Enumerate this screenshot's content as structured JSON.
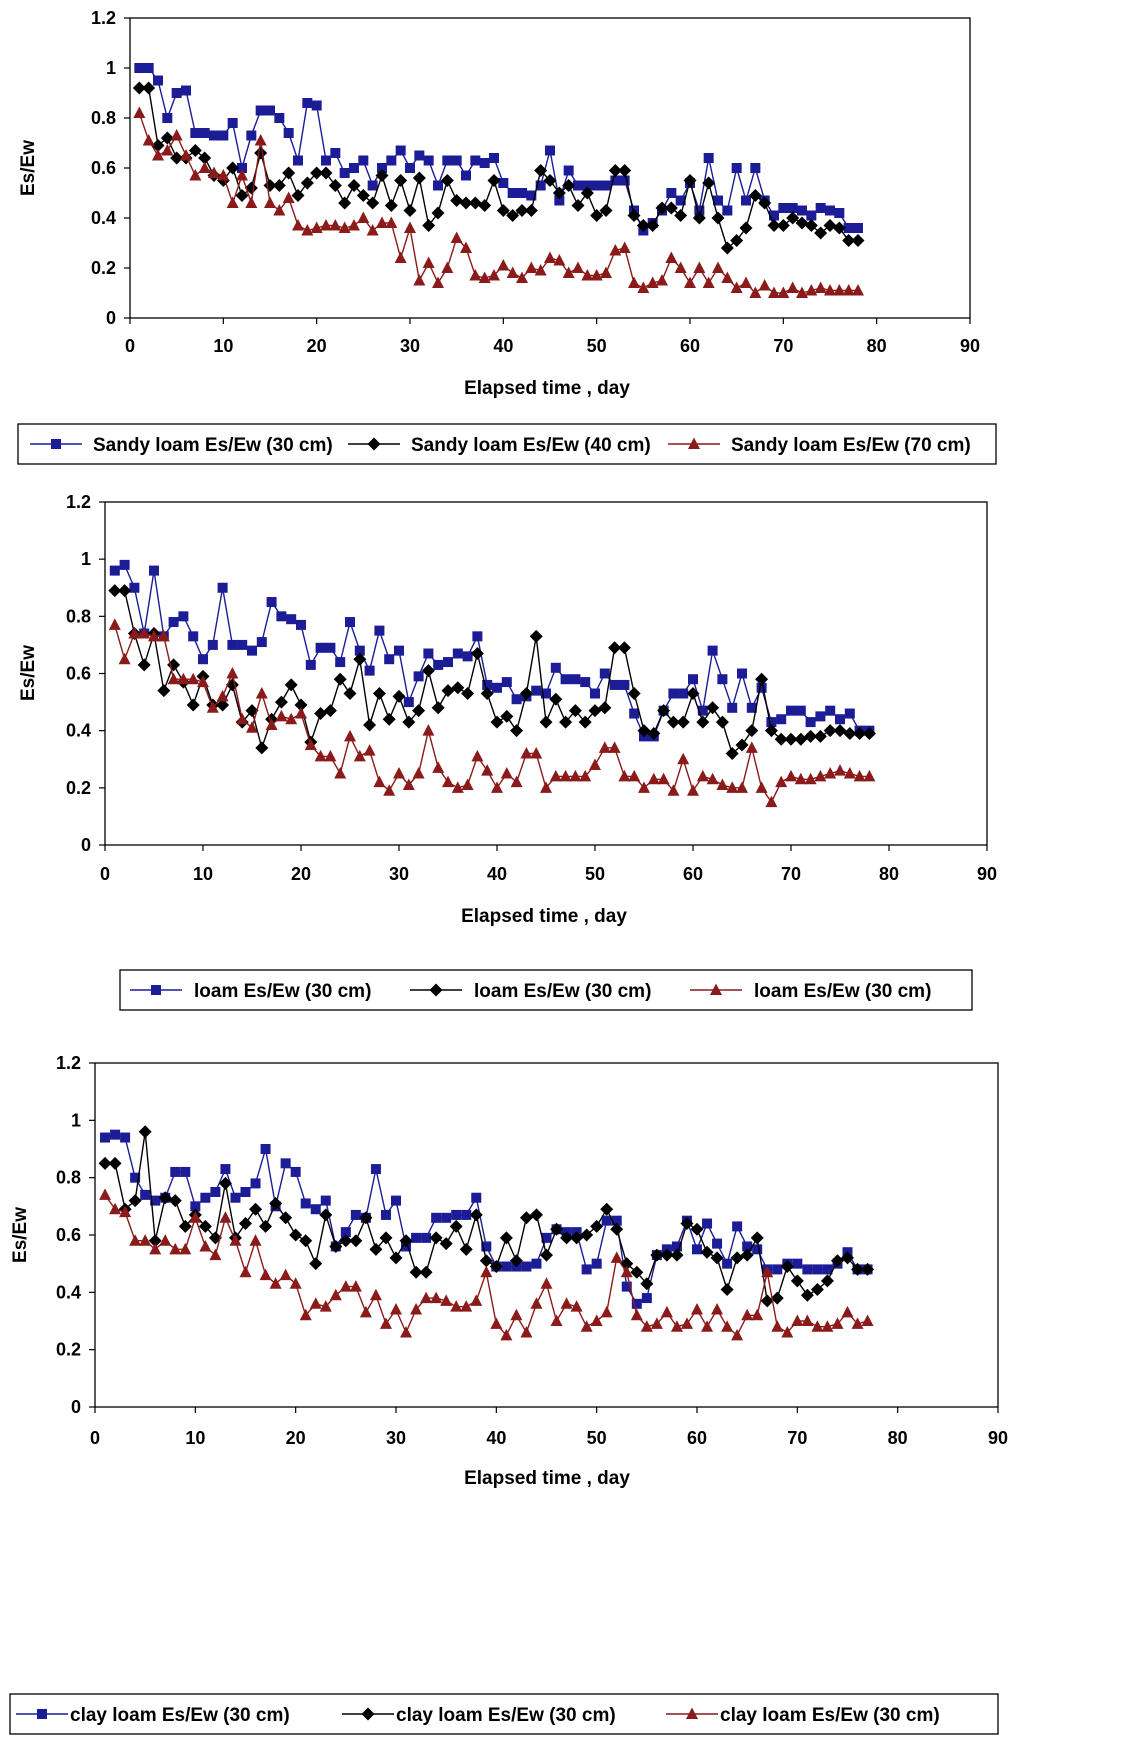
{
  "chart_data": [
    {
      "type": "line",
      "title": "",
      "xlabel": "Elapsed time , day",
      "ylabel": "Es/Ew",
      "xlim": [
        0,
        90
      ],
      "ylim": [
        0,
        1.2
      ],
      "x_ticks": [
        "0",
        "10",
        "20",
        "30",
        "40",
        "50",
        "60",
        "70",
        "80",
        "90"
      ],
      "y_ticks": [
        "0",
        "0.2",
        "0.4",
        "0.6",
        "0.8",
        "1",
        "1.2"
      ],
      "grid": false,
      "legend_position": "bottom",
      "series": [
        {
          "name": "Sandy loam Es/Ew (30 cm)",
          "color": "#1c1c96",
          "marker": "square",
          "values": [
            1.0,
            1.0,
            0.95,
            0.8,
            0.9,
            0.91,
            0.74,
            0.74,
            0.73,
            0.73,
            0.78,
            0.6,
            0.73,
            0.83,
            0.83,
            0.8,
            0.74,
            0.63,
            0.86,
            0.85,
            0.63,
            0.66,
            0.58,
            0.6,
            0.63,
            0.53,
            0.6,
            0.63,
            0.67,
            0.6,
            0.65,
            0.63,
            0.53,
            0.63,
            0.63,
            0.57,
            0.63,
            0.62,
            0.64,
            0.54,
            0.5,
            0.5,
            0.49,
            0.53,
            0.67,
            0.47,
            0.59,
            0.53,
            0.53,
            0.53,
            0.53,
            0.55,
            0.55,
            0.43,
            0.35,
            0.38,
            0.43,
            0.5,
            0.47,
            0.54,
            0.43,
            0.64,
            0.47,
            0.43,
            0.6,
            0.47,
            0.6,
            0.47,
            0.41,
            0.44,
            0.44,
            0.43,
            0.41,
            0.44,
            0.43,
            0.42,
            0.36,
            0.36
          ]
        },
        {
          "name": "Sandy loam Es/Ew (40 cm)",
          "color": "#000000",
          "marker": "diamond",
          "values": [
            0.92,
            0.92,
            0.69,
            0.72,
            0.64,
            0.64,
            0.67,
            0.64,
            0.57,
            0.55,
            0.6,
            0.49,
            0.52,
            0.66,
            0.53,
            0.53,
            0.58,
            0.49,
            0.54,
            0.58,
            0.58,
            0.53,
            0.46,
            0.53,
            0.49,
            0.46,
            0.57,
            0.45,
            0.55,
            0.43,
            0.56,
            0.37,
            0.42,
            0.55,
            0.47,
            0.46,
            0.46,
            0.45,
            0.55,
            0.43,
            0.41,
            0.43,
            0.43,
            0.59,
            0.55,
            0.5,
            0.53,
            0.45,
            0.5,
            0.41,
            0.43,
            0.59,
            0.59,
            0.41,
            0.37,
            0.37,
            0.44,
            0.44,
            0.41,
            0.55,
            0.4,
            0.54,
            0.4,
            0.28,
            0.31,
            0.36,
            0.49,
            0.46,
            0.37,
            0.37,
            0.4,
            0.38,
            0.37,
            0.34,
            0.37,
            0.36,
            0.31,
            0.31
          ]
        },
        {
          "name": "Sandy loam Es/Ew (70 cm)",
          "color": "#8b1a1a",
          "marker": "triangle",
          "values": [
            0.82,
            0.71,
            0.65,
            0.67,
            0.73,
            0.65,
            0.57,
            0.6,
            0.58,
            0.57,
            0.46,
            0.57,
            0.46,
            0.71,
            0.46,
            0.43,
            0.48,
            0.37,
            0.35,
            0.36,
            0.37,
            0.37,
            0.36,
            0.37,
            0.4,
            0.35,
            0.38,
            0.38,
            0.24,
            0.36,
            0.15,
            0.22,
            0.14,
            0.2,
            0.32,
            0.28,
            0.17,
            0.16,
            0.17,
            0.21,
            0.18,
            0.16,
            0.2,
            0.19,
            0.24,
            0.23,
            0.18,
            0.2,
            0.17,
            0.17,
            0.18,
            0.27,
            0.28,
            0.14,
            0.12,
            0.14,
            0.15,
            0.24,
            0.2,
            0.14,
            0.2,
            0.14,
            0.2,
            0.16,
            0.12,
            0.14,
            0.1,
            0.13,
            0.1,
            0.1,
            0.12,
            0.1,
            0.11,
            0.12,
            0.11,
            0.11,
            0.11,
            0.11
          ]
        }
      ]
    },
    {
      "type": "line",
      "title": "",
      "xlabel": "Elapsed time , day",
      "ylabel": "Es/Ew",
      "xlim": [
        0,
        90
      ],
      "ylim": [
        0,
        1.2
      ],
      "x_ticks": [
        "0",
        "10",
        "20",
        "30",
        "40",
        "50",
        "60",
        "70",
        "80",
        "90"
      ],
      "y_ticks": [
        "0",
        "0.2",
        "0.4",
        "0.6",
        "0.8",
        "1",
        "1.2"
      ],
      "grid": false,
      "legend_position": "bottom",
      "series": [
        {
          "name": "loam Es/Ew (30 cm)",
          "color": "#1c1c96",
          "marker": "square",
          "values": [
            0.96,
            0.98,
            0.9,
            0.74,
            0.96,
            0.73,
            0.78,
            0.8,
            0.73,
            0.65,
            0.7,
            0.9,
            0.7,
            0.7,
            0.68,
            0.71,
            0.85,
            0.8,
            0.79,
            0.77,
            0.63,
            0.69,
            0.69,
            0.64,
            0.78,
            0.68,
            0.61,
            0.75,
            0.65,
            0.68,
            0.5,
            0.59,
            0.67,
            0.63,
            0.64,
            0.67,
            0.66,
            0.73,
            0.56,
            0.55,
            0.57,
            0.51,
            0.52,
            0.54,
            0.53,
            0.62,
            0.58,
            0.58,
            0.57,
            0.53,
            0.6,
            0.56,
            0.56,
            0.46,
            0.38,
            0.38,
            0.47,
            0.53,
            0.53,
            0.58,
            0.47,
            0.68,
            0.58,
            0.48,
            0.6,
            0.48,
            0.55,
            0.43,
            0.44,
            0.47,
            0.47,
            0.43,
            0.45,
            0.47,
            0.44,
            0.46,
            0.4,
            0.4
          ]
        },
        {
          "name": "loam Es/Ew (30 cm)",
          "color": "#000000",
          "marker": "diamond",
          "values": [
            0.89,
            0.89,
            0.74,
            0.63,
            0.74,
            0.54,
            0.63,
            0.57,
            0.49,
            0.59,
            0.49,
            0.49,
            0.56,
            0.43,
            0.47,
            0.34,
            0.44,
            0.5,
            0.56,
            0.49,
            0.36,
            0.46,
            0.47,
            0.58,
            0.53,
            0.65,
            0.42,
            0.53,
            0.44,
            0.52,
            0.43,
            0.47,
            0.61,
            0.48,
            0.54,
            0.55,
            0.53,
            0.67,
            0.53,
            0.43,
            0.45,
            0.4,
            0.53,
            0.73,
            0.43,
            0.51,
            0.43,
            0.47,
            0.43,
            0.47,
            0.48,
            0.69,
            0.69,
            0.53,
            0.4,
            0.39,
            0.47,
            0.43,
            0.43,
            0.53,
            0.43,
            0.48,
            0.43,
            0.32,
            0.35,
            0.4,
            0.58,
            0.4,
            0.37,
            0.37,
            0.37,
            0.38,
            0.38,
            0.4,
            0.4,
            0.39,
            0.39,
            0.39
          ]
        },
        {
          "name": "loam Es/Ew (30 cm)",
          "color": "#8b1a1a",
          "marker": "triangle",
          "values": [
            0.77,
            0.65,
            0.74,
            0.74,
            0.73,
            0.73,
            0.58,
            0.58,
            0.58,
            0.57,
            0.48,
            0.52,
            0.6,
            0.44,
            0.41,
            0.53,
            0.42,
            0.45,
            0.44,
            0.46,
            0.35,
            0.31,
            0.31,
            0.25,
            0.38,
            0.31,
            0.33,
            0.22,
            0.19,
            0.25,
            0.21,
            0.25,
            0.4,
            0.27,
            0.22,
            0.2,
            0.21,
            0.31,
            0.26,
            0.2,
            0.25,
            0.22,
            0.32,
            0.32,
            0.2,
            0.24,
            0.24,
            0.24,
            0.24,
            0.28,
            0.34,
            0.34,
            0.24,
            0.24,
            0.2,
            0.23,
            0.23,
            0.19,
            0.3,
            0.19,
            0.24,
            0.23,
            0.21,
            0.2,
            0.2,
            0.34,
            0.2,
            0.15,
            0.22,
            0.24,
            0.23,
            0.23,
            0.24,
            0.25,
            0.26,
            0.25,
            0.24,
            0.24
          ]
        }
      ]
    },
    {
      "type": "line",
      "title": "",
      "xlabel": "Elapsed time , day",
      "ylabel": "Es/Ew",
      "xlim": [
        0,
        90
      ],
      "ylim": [
        0,
        1.2
      ],
      "x_ticks": [
        "0",
        "10",
        "20",
        "30",
        "40",
        "50",
        "60",
        "70",
        "80",
        "90"
      ],
      "y_ticks": [
        "0",
        "0.2",
        "0.4",
        "0.6",
        "0.8",
        "1",
        "1.2"
      ],
      "grid": false,
      "legend_position": "bottom",
      "series": [
        {
          "name": "clay loam Es/Ew (30 cm)",
          "color": "#1c1c96",
          "marker": "square",
          "values": [
            0.94,
            0.95,
            0.94,
            0.8,
            0.74,
            0.72,
            0.73,
            0.82,
            0.82,
            0.7,
            0.73,
            0.75,
            0.83,
            0.73,
            0.75,
            0.78,
            0.9,
            0.7,
            0.85,
            0.82,
            0.71,
            0.69,
            0.72,
            0.56,
            0.61,
            0.67,
            0.66,
            0.83,
            0.67,
            0.72,
            0.56,
            0.59,
            0.59,
            0.66,
            0.66,
            0.67,
            0.67,
            0.73,
            0.56,
            0.49,
            0.49,
            0.49,
            0.49,
            0.5,
            0.59,
            0.62,
            0.61,
            0.61,
            0.48,
            0.5,
            0.65,
            0.65,
            0.42,
            0.36,
            0.38,
            0.53,
            0.55,
            0.56,
            0.65,
            0.55,
            0.64,
            0.57,
            0.5,
            0.63,
            0.56,
            0.55,
            0.48,
            0.48,
            0.5,
            0.5,
            0.48,
            0.48,
            0.48,
            0.5,
            0.54,
            0.48,
            0.48
          ]
        },
        {
          "name": "clay loam Es/Ew (30 cm)",
          "color": "#000000",
          "marker": "diamond",
          "values": [
            0.85,
            0.85,
            0.69,
            0.72,
            0.96,
            0.58,
            0.73,
            0.72,
            0.63,
            0.67,
            0.63,
            0.59,
            0.78,
            0.59,
            0.64,
            0.69,
            0.63,
            0.71,
            0.66,
            0.6,
            0.58,
            0.5,
            0.67,
            0.56,
            0.58,
            0.58,
            0.66,
            0.55,
            0.59,
            0.52,
            0.58,
            0.47,
            0.47,
            0.59,
            0.57,
            0.63,
            0.55,
            0.67,
            0.51,
            0.49,
            0.59,
            0.51,
            0.66,
            0.67,
            0.53,
            0.62,
            0.59,
            0.59,
            0.6,
            0.63,
            0.69,
            0.62,
            0.5,
            0.47,
            0.43,
            0.53,
            0.53,
            0.53,
            0.64,
            0.62,
            0.54,
            0.52,
            0.41,
            0.52,
            0.53,
            0.59,
            0.37,
            0.38,
            0.49,
            0.44,
            0.39,
            0.41,
            0.44,
            0.51,
            0.52,
            0.48,
            0.48
          ]
        },
        {
          "name": "clay loam Es/Ew (30 cm)",
          "color": "#8b1a1a",
          "marker": "triangle",
          "values": [
            0.74,
            0.69,
            0.68,
            0.58,
            0.58,
            0.55,
            0.58,
            0.55,
            0.55,
            0.66,
            0.56,
            0.53,
            0.66,
            0.58,
            0.47,
            0.58,
            0.46,
            0.43,
            0.46,
            0.43,
            0.32,
            0.36,
            0.35,
            0.39,
            0.42,
            0.42,
            0.33,
            0.39,
            0.29,
            0.34,
            0.26,
            0.34,
            0.38,
            0.38,
            0.37,
            0.35,
            0.35,
            0.37,
            0.47,
            0.29,
            0.25,
            0.32,
            0.26,
            0.36,
            0.43,
            0.3,
            0.36,
            0.35,
            0.28,
            0.3,
            0.33,
            0.52,
            0.47,
            0.32,
            0.28,
            0.29,
            0.33,
            0.28,
            0.29,
            0.34,
            0.28,
            0.34,
            0.28,
            0.25,
            0.32,
            0.32,
            0.47,
            0.28,
            0.26,
            0.3,
            0.3,
            0.28,
            0.28,
            0.29,
            0.33,
            0.29,
            0.3
          ]
        }
      ]
    }
  ]
}
